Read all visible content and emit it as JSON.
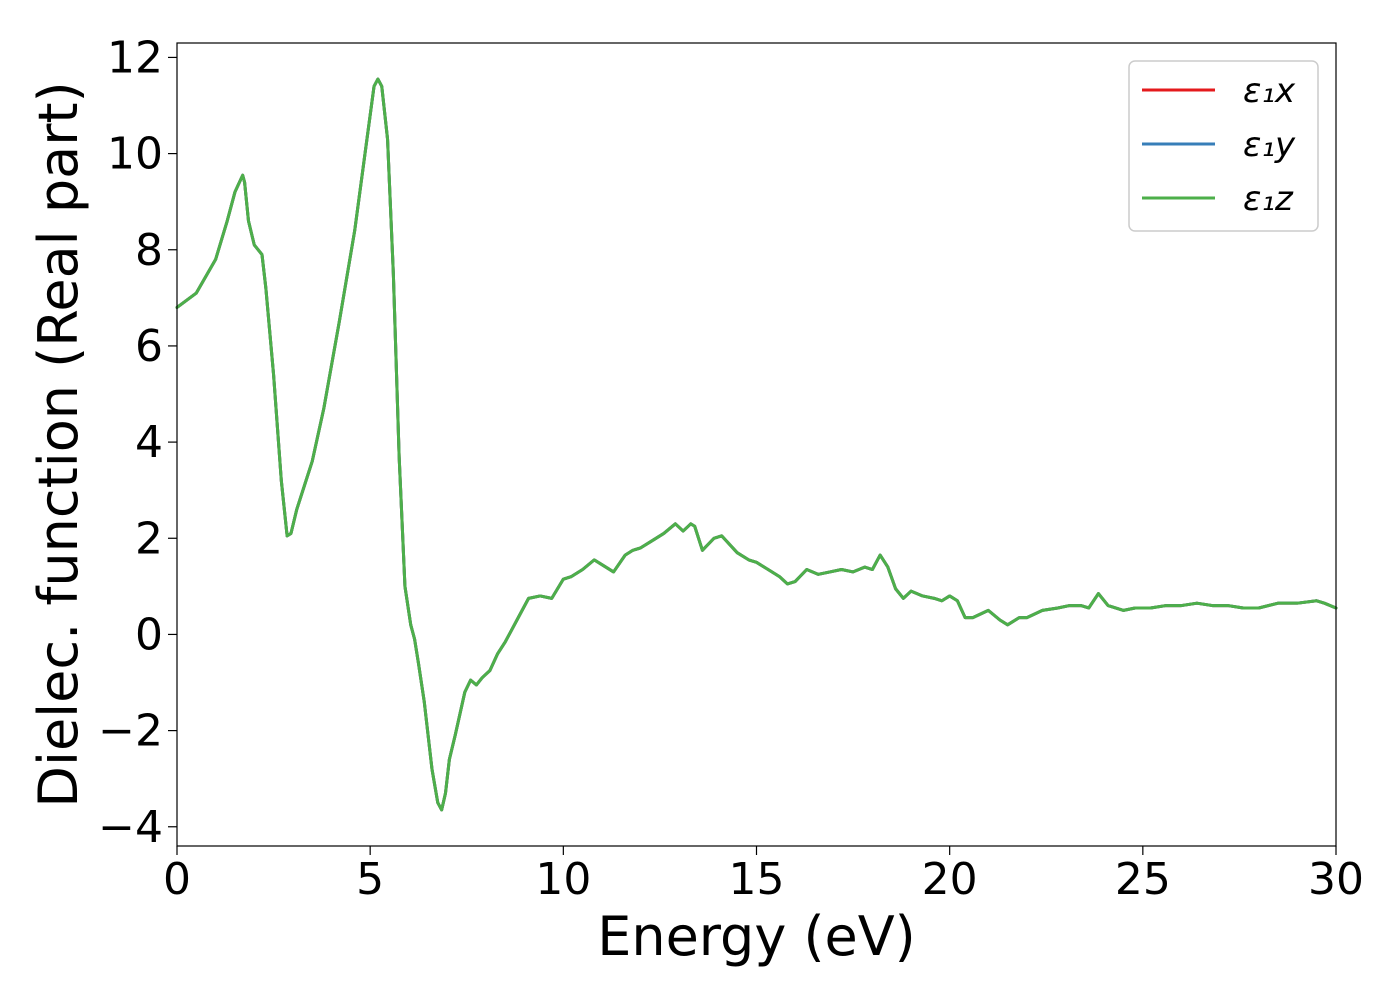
{
  "chart_data": {
    "type": "line",
    "title": "",
    "xlabel": "Energy (eV)",
    "ylabel": "Dielec. function (Real part)",
    "xlim": [
      0,
      30
    ],
    "ylim": [
      -4.4,
      12.3
    ],
    "xticks": [
      0,
      5,
      10,
      15,
      20,
      25,
      30
    ],
    "yticks": [
      -4,
      -2,
      0,
      2,
      4,
      6,
      8,
      10,
      12
    ],
    "xtick_labels": [
      "0",
      "5",
      "10",
      "15",
      "20",
      "25",
      "30"
    ],
    "ytick_labels": [
      "−4",
      "−2",
      "0",
      "2",
      "4",
      "6",
      "8",
      "10",
      "12"
    ],
    "grid": false,
    "legend_position": "top-right",
    "x": [
      0,
      0.5,
      1.0,
      1.3,
      1.5,
      1.7,
      1.75,
      1.85,
      2.0,
      2.2,
      2.3,
      2.5,
      2.7,
      2.85,
      2.95,
      3.1,
      3.3,
      3.5,
      3.8,
      4.2,
      4.6,
      4.9,
      5.1,
      5.2,
      5.3,
      5.45,
      5.6,
      5.75,
      5.9,
      6.05,
      6.15,
      6.25,
      6.4,
      6.6,
      6.75,
      6.85,
      6.95,
      7.05,
      7.2,
      7.45,
      7.6,
      7.75,
      7.9,
      8.1,
      8.3,
      8.5,
      8.8,
      9.1,
      9.4,
      9.7,
      10.0,
      10.2,
      10.5,
      10.8,
      11.0,
      11.3,
      11.6,
      11.8,
      12.0,
      12.3,
      12.6,
      12.9,
      13.1,
      13.3,
      13.4,
      13.6,
      13.9,
      14.1,
      14.5,
      14.8,
      15.0,
      15.3,
      15.6,
      15.8,
      16.0,
      16.3,
      16.6,
      16.9,
      17.2,
      17.5,
      17.8,
      18.0,
      18.2,
      18.4,
      18.6,
      18.8,
      19.0,
      19.3,
      19.6,
      19.8,
      20.0,
      20.2,
      20.4,
      20.6,
      21.0,
      21.3,
      21.5,
      21.8,
      22.0,
      22.4,
      22.8,
      23.1,
      23.4,
      23.6,
      23.85,
      24.1,
      24.5,
      24.8,
      25.2,
      25.6,
      26.0,
      26.4,
      26.8,
      27.2,
      27.6,
      28.0,
      28.5,
      29.0,
      29.5,
      29.7,
      30.0
    ],
    "series": [
      {
        "name": "ε₁x",
        "color": "#e41a1c",
        "values": [
          6.8,
          7.1,
          7.8,
          8.6,
          9.2,
          9.55,
          9.4,
          8.6,
          8.1,
          7.9,
          7.2,
          5.4,
          3.2,
          2.05,
          2.1,
          2.6,
          3.1,
          3.6,
          4.7,
          6.5,
          8.4,
          10.2,
          11.4,
          11.55,
          11.4,
          10.3,
          7.5,
          3.7,
          1.0,
          0.2,
          -0.1,
          -0.6,
          -1.4,
          -2.8,
          -3.5,
          -3.65,
          -3.3,
          -2.6,
          -2.1,
          -1.2,
          -0.95,
          -1.05,
          -0.9,
          -0.75,
          -0.4,
          -0.15,
          0.3,
          0.75,
          0.8,
          0.75,
          1.15,
          1.2,
          1.35,
          1.55,
          1.45,
          1.3,
          1.65,
          1.75,
          1.8,
          1.95,
          2.1,
          2.3,
          2.15,
          2.3,
          2.25,
          1.75,
          2.0,
          2.05,
          1.7,
          1.55,
          1.5,
          1.35,
          1.2,
          1.05,
          1.1,
          1.35,
          1.25,
          1.3,
          1.35,
          1.3,
          1.4,
          1.35,
          1.65,
          1.4,
          0.95,
          0.75,
          0.9,
          0.8,
          0.75,
          0.7,
          0.8,
          0.7,
          0.35,
          0.35,
          0.5,
          0.3,
          0.2,
          0.35,
          0.35,
          0.5,
          0.55,
          0.6,
          0.6,
          0.55,
          0.85,
          0.6,
          0.5,
          0.55,
          0.55,
          0.6,
          0.6,
          0.65,
          0.6,
          0.6,
          0.55,
          0.55,
          0.65,
          0.65,
          0.7,
          0.65,
          0.55
        ]
      },
      {
        "name": "ε₁y",
        "color": "#377eb8",
        "values": [
          6.8,
          7.1,
          7.8,
          8.6,
          9.2,
          9.55,
          9.4,
          8.6,
          8.1,
          7.9,
          7.2,
          5.4,
          3.2,
          2.05,
          2.1,
          2.6,
          3.1,
          3.6,
          4.7,
          6.5,
          8.4,
          10.2,
          11.4,
          11.55,
          11.4,
          10.3,
          7.5,
          3.7,
          1.0,
          0.2,
          -0.1,
          -0.6,
          -1.4,
          -2.8,
          -3.5,
          -3.65,
          -3.3,
          -2.6,
          -2.1,
          -1.2,
          -0.95,
          -1.05,
          -0.9,
          -0.75,
          -0.4,
          -0.15,
          0.3,
          0.75,
          0.8,
          0.75,
          1.15,
          1.2,
          1.35,
          1.55,
          1.45,
          1.3,
          1.65,
          1.75,
          1.8,
          1.95,
          2.1,
          2.3,
          2.15,
          2.3,
          2.25,
          1.75,
          2.0,
          2.05,
          1.7,
          1.55,
          1.5,
          1.35,
          1.2,
          1.05,
          1.1,
          1.35,
          1.25,
          1.3,
          1.35,
          1.3,
          1.4,
          1.35,
          1.65,
          1.4,
          0.95,
          0.75,
          0.9,
          0.8,
          0.75,
          0.7,
          0.8,
          0.7,
          0.35,
          0.35,
          0.5,
          0.3,
          0.2,
          0.35,
          0.35,
          0.5,
          0.55,
          0.6,
          0.6,
          0.55,
          0.85,
          0.6,
          0.5,
          0.55,
          0.55,
          0.6,
          0.6,
          0.65,
          0.6,
          0.6,
          0.55,
          0.55,
          0.65,
          0.65,
          0.7,
          0.65,
          0.55
        ]
      },
      {
        "name": "ε₁z",
        "color": "#4daf4a",
        "values": [
          6.8,
          7.1,
          7.8,
          8.6,
          9.2,
          9.55,
          9.4,
          8.6,
          8.1,
          7.9,
          7.2,
          5.4,
          3.2,
          2.05,
          2.1,
          2.6,
          3.1,
          3.6,
          4.7,
          6.5,
          8.4,
          10.2,
          11.4,
          11.55,
          11.4,
          10.3,
          7.5,
          3.7,
          1.0,
          0.2,
          -0.1,
          -0.6,
          -1.4,
          -2.8,
          -3.5,
          -3.65,
          -3.3,
          -2.6,
          -2.1,
          -1.2,
          -0.95,
          -1.05,
          -0.9,
          -0.75,
          -0.4,
          -0.15,
          0.3,
          0.75,
          0.8,
          0.75,
          1.15,
          1.2,
          1.35,
          1.55,
          1.45,
          1.3,
          1.65,
          1.75,
          1.8,
          1.95,
          2.1,
          2.3,
          2.15,
          2.3,
          2.25,
          1.75,
          2.0,
          2.05,
          1.7,
          1.55,
          1.5,
          1.35,
          1.2,
          1.05,
          1.1,
          1.35,
          1.25,
          1.3,
          1.35,
          1.3,
          1.4,
          1.35,
          1.65,
          1.4,
          0.95,
          0.75,
          0.9,
          0.8,
          0.75,
          0.7,
          0.8,
          0.7,
          0.35,
          0.35,
          0.5,
          0.3,
          0.2,
          0.35,
          0.35,
          0.5,
          0.55,
          0.6,
          0.6,
          0.55,
          0.85,
          0.6,
          0.5,
          0.55,
          0.55,
          0.6,
          0.6,
          0.65,
          0.6,
          0.6,
          0.55,
          0.55,
          0.65,
          0.65,
          0.7,
          0.65,
          0.55
        ]
      }
    ]
  }
}
